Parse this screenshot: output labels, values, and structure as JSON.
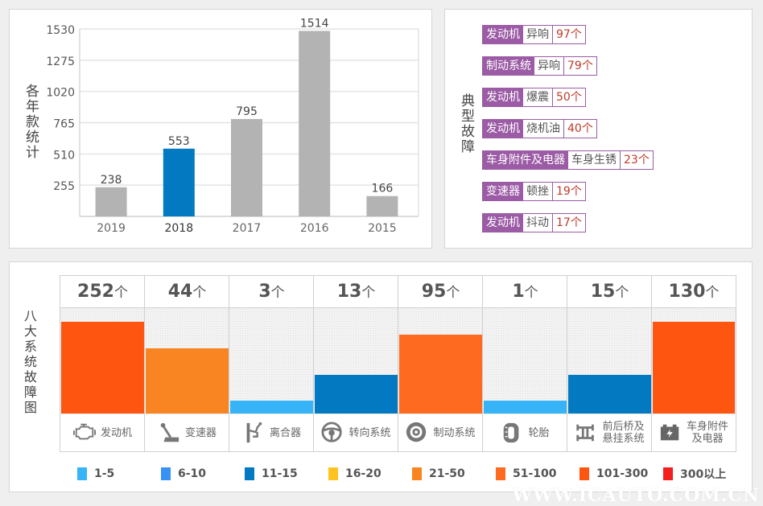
{
  "chart_data": [
    {
      "type": "bar",
      "title": "各年款统计",
      "ylabel": "各年款统计",
      "xlabel": "",
      "categories": [
        "2019",
        "2018",
        "2017",
        "2016",
        "2015"
      ],
      "values": [
        238,
        553,
        795,
        1514,
        166
      ],
      "highlight_category": "2018",
      "highlight_color": "#0279c0",
      "bar_color": "#b3b3b3",
      "yticks": [
        255,
        510,
        765,
        1020,
        1275,
        1530
      ],
      "ylim": [
        0,
        1530
      ],
      "grid": true,
      "legend": "none"
    },
    {
      "type": "bar",
      "title": "八大系统故障图",
      "ylabel": "八大系统故障图",
      "unit": "个",
      "categories": [
        "发动机",
        "变速器",
        "离合器",
        "转向系统",
        "制动系统",
        "轮胎",
        "前后桥及悬挂系统",
        "车身附件及电器"
      ],
      "category_lines": [
        [
          "发动机"
        ],
        [
          "变速器"
        ],
        [
          "离合器"
        ],
        [
          "转向系统"
        ],
        [
          "制动系统"
        ],
        [
          "轮胎"
        ],
        [
          "前后桥及",
          "悬挂系统"
        ],
        [
          "车身附件",
          "及电器"
        ]
      ],
      "icons": [
        "engine-icon",
        "gear-shift-icon",
        "clutch-icon",
        "steering-wheel-icon",
        "brake-disc-icon",
        "tire-icon",
        "axle-suspension-icon",
        "battery-icon"
      ],
      "values": [
        252,
        44,
        3,
        13,
        95,
        1,
        15,
        130
      ],
      "bar_level": [
        0.87,
        0.62,
        0.12,
        0.37,
        0.75,
        0.12,
        0.37,
        0.87
      ],
      "bar_colors": [
        "#fe5511",
        "#f98522",
        "#37b4f8",
        "#0279c0",
        "#fe6a1f",
        "#37b4f8",
        "#0279c0",
        "#fe5511"
      ],
      "legend": "bottom",
      "legend_items": [
        {
          "label": "1-5",
          "color": "#37b4f8"
        },
        {
          "label": "6-10",
          "color": "#3891f4"
        },
        {
          "label": "11-15",
          "color": "#0279c0"
        },
        {
          "label": "16-20",
          "color": "#ffc321"
        },
        {
          "label": "21-50",
          "color": "#f98522"
        },
        {
          "label": "51-100",
          "color": "#fe6a1f"
        },
        {
          "label": "101-300",
          "color": "#fe5511"
        },
        {
          "label": "300以上",
          "color": "#f41f1f"
        }
      ]
    }
  ],
  "typical_faults": {
    "label": "典型故障",
    "items": [
      {
        "system": "发动机",
        "symptom": "异响",
        "count": "97个"
      },
      {
        "system": "制动系统",
        "symptom": "异响",
        "count": "79个"
      },
      {
        "system": "发动机",
        "symptom": "爆震",
        "count": "50个"
      },
      {
        "system": "发动机",
        "symptom": "烧机油",
        "count": "40个"
      },
      {
        "system": "车身附件及电器",
        "symptom": "车身生锈",
        "count": "23个"
      },
      {
        "system": "变速器",
        "symptom": "顿挫",
        "count": "19个"
      },
      {
        "system": "发动机",
        "symptom": "抖动",
        "count": "17个"
      }
    ]
  },
  "watermark": "WWW.ICAUTO.COM.CN"
}
